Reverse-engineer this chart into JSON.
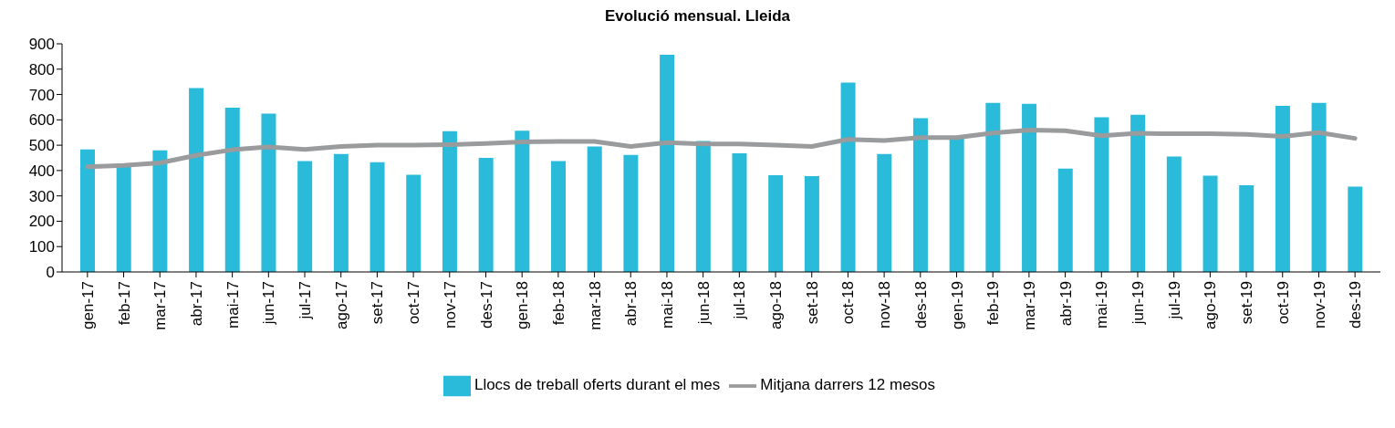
{
  "chart_data": {
    "type": "bar",
    "title": "Evolució mensual. Lleida",
    "categories": [
      "gen-17",
      "feb-17",
      "mar-17",
      "abr-17",
      "mai-17",
      "jun-17",
      "jul-17",
      "ago-17",
      "set-17",
      "oct-17",
      "nov-17",
      "des-17",
      "gen-18",
      "feb-18",
      "mar-18",
      "abr-18",
      "mai-18",
      "jun-18",
      "jul-18",
      "ago-18",
      "set-18",
      "oct-18",
      "nov-18",
      "des-18",
      "gen-19",
      "feb-19",
      "mar-19",
      "abr-19",
      "mai-19",
      "jun-19",
      "jul-19",
      "ago-19",
      "set-19",
      "oct-19",
      "nov-19",
      "des-19"
    ],
    "series": [
      {
        "name": "Llocs de treball oferts durant el mes",
        "color": "#29bbd9",
        "values": [
          483,
          415,
          480,
          725,
          648,
          625,
          437,
          465,
          433,
          383,
          555,
          450,
          557,
          437,
          495,
          462,
          857,
          517,
          468,
          382,
          378,
          747,
          465,
          607,
          530,
          667,
          663,
          408,
          610,
          620,
          455,
          380,
          342,
          655,
          667,
          337
        ]
      },
      {
        "name": "Mitjana darrers 12 mesos",
        "type": "line",
        "color": "#999b9c",
        "values": [
          415,
          420,
          430,
          460,
          482,
          493,
          483,
          495,
          500,
          500,
          502,
          507,
          513,
          515,
          515,
          495,
          510,
          505,
          505,
          500,
          495,
          523,
          518,
          530,
          530,
          548,
          560,
          557,
          537,
          547,
          545,
          545,
          543,
          535,
          550,
          527
        ]
      }
    ],
    "ylim": [
      0,
      900
    ],
    "yticks": [
      0,
      100,
      200,
      300,
      400,
      500,
      600,
      700,
      800,
      900
    ],
    "grid": false,
    "legend": "bottom",
    "marker": "none"
  }
}
